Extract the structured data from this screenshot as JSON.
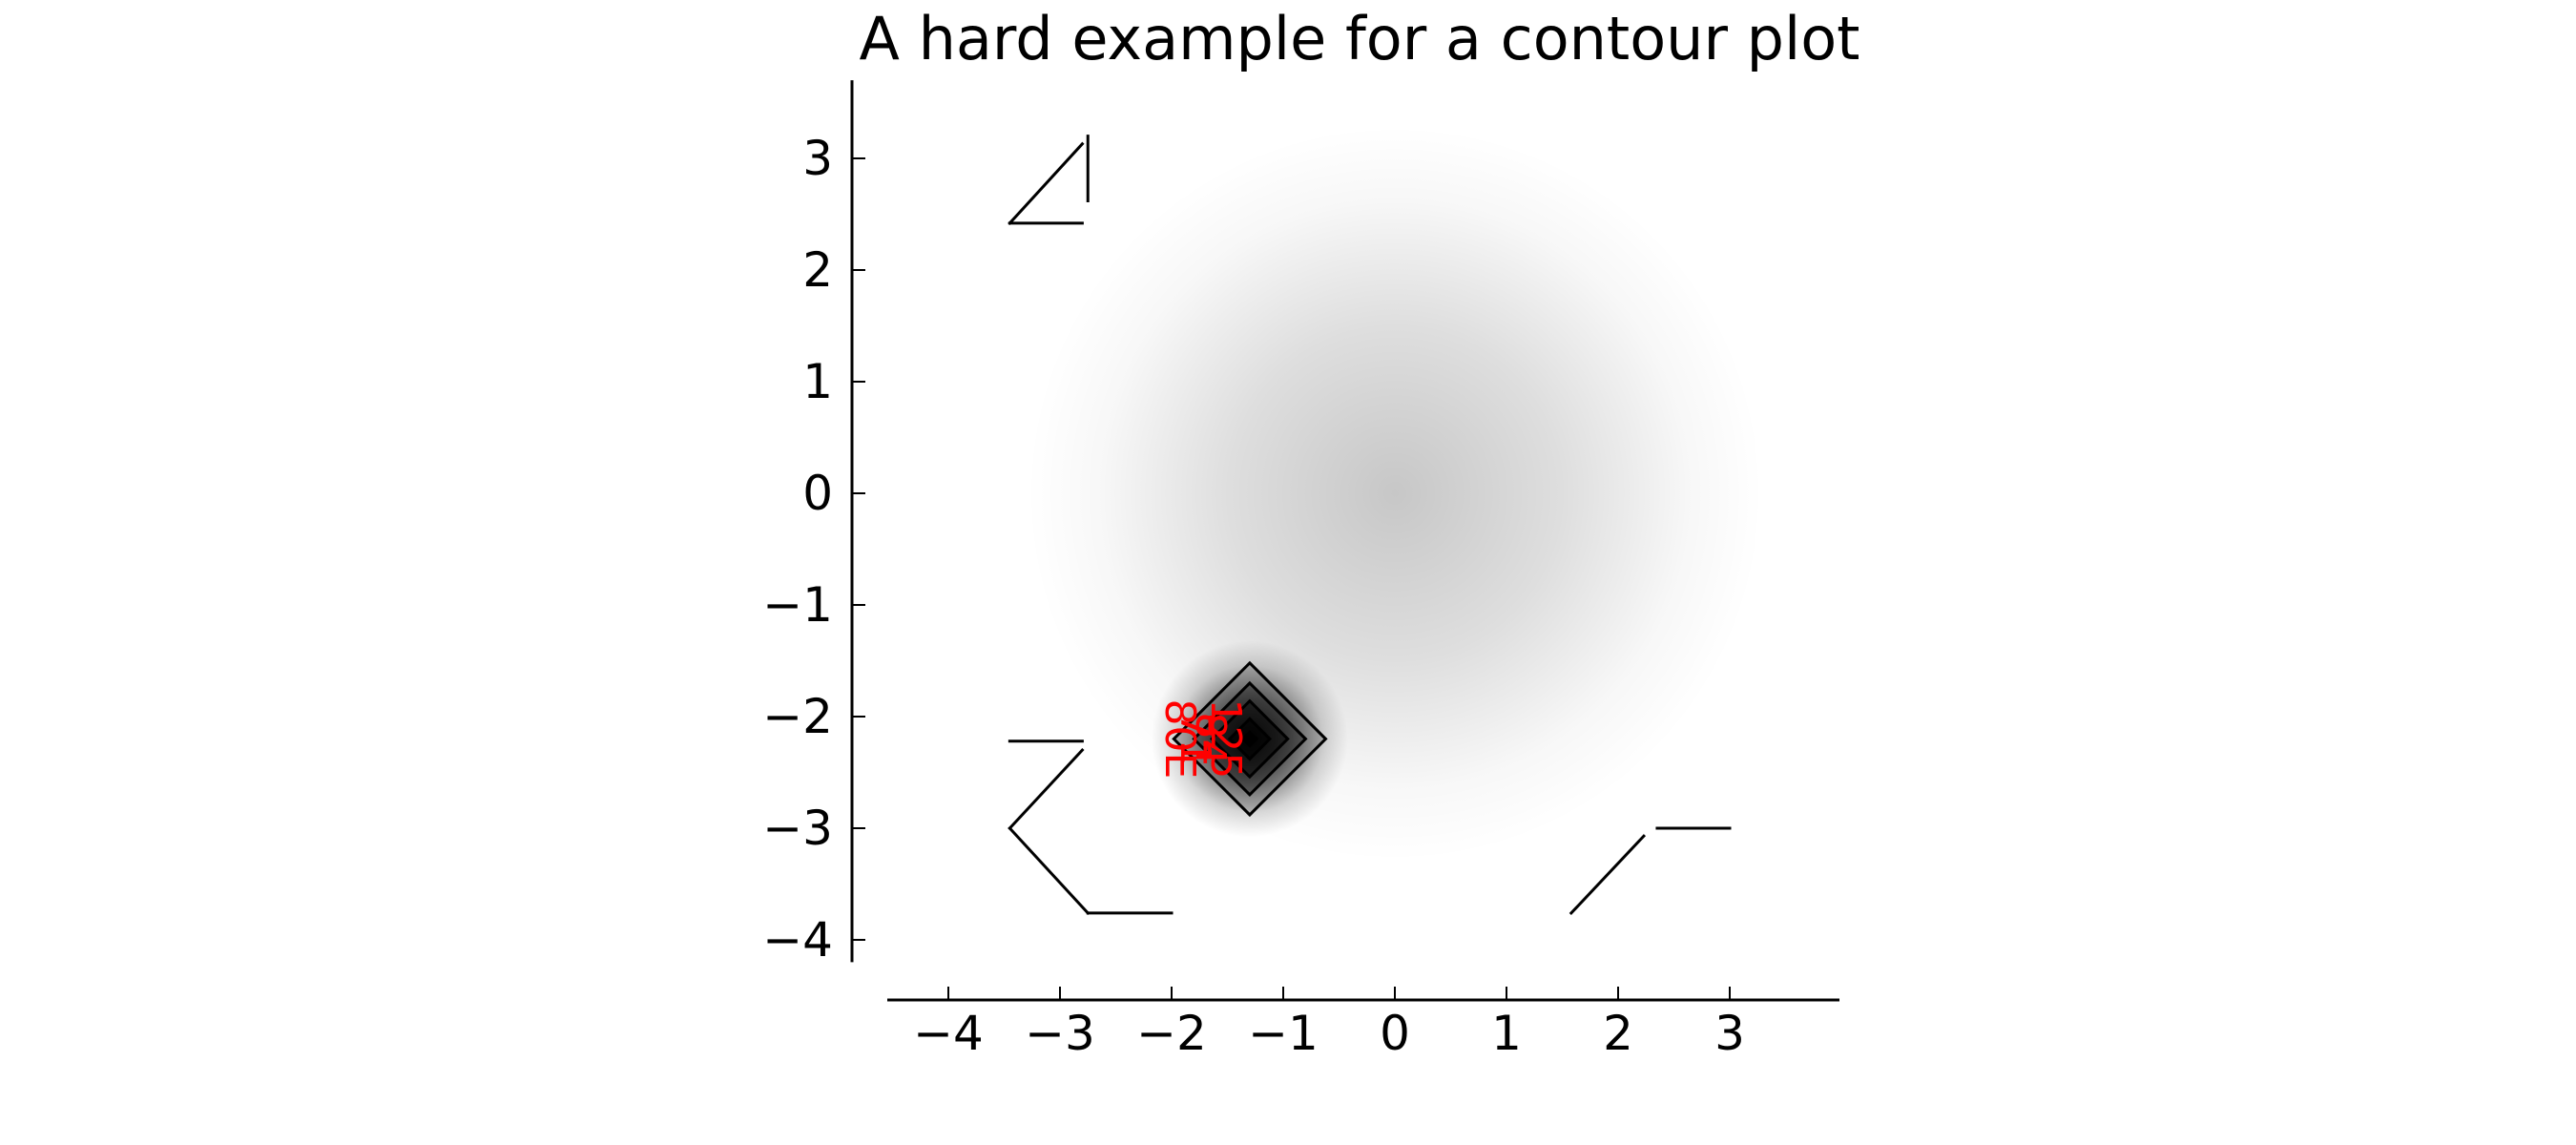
{
  "chart_data": {
    "type": "contour",
    "title": "A hard example for a contour plot",
    "xlabel": "",
    "ylabel": "",
    "xlim": [
      -4.5,
      4
    ],
    "ylim": [
      -4.2,
      3.7
    ],
    "x_ticks": [
      -4,
      -3,
      -2,
      -1,
      0,
      1,
      2,
      3
    ],
    "y_ticks": [
      -4,
      -3,
      -2,
      -1,
      0,
      1,
      2,
      3
    ],
    "x_tick_labels": [
      "−4",
      "−3",
      "−2",
      "−1",
      "0",
      "1",
      "2",
      "3"
    ],
    "y_tick_labels": [
      "−4",
      "−3",
      "−2",
      "−1",
      "0",
      "1",
      "2",
      "3"
    ],
    "grid": false,
    "colormap": "gray_r",
    "background_blobs": [
      {
        "center": [
          0,
          0
        ],
        "sigma": 1.5,
        "intensity": 0.22
      },
      {
        "center": [
          -1.3,
          -2.2
        ],
        "sigma": 0.4,
        "intensity": 0.9
      }
    ],
    "contour_sets": [
      {
        "name": "peak",
        "center": [
          -1.3,
          -2.2
        ],
        "half_widths": [
          0.68,
          0.5,
          0.34,
          0.18,
          0.06
        ],
        "color": "#000000"
      }
    ],
    "stray_segments": [
      [
        [
          -3.45,
          2.42
        ],
        [
          -2.8,
          3.13
        ]
      ],
      [
        [
          -3.45,
          2.42
        ],
        [
          -2.8,
          2.42
        ]
      ],
      [
        [
          -2.75,
          3.2
        ],
        [
          -2.75,
          2.62
        ]
      ],
      [
        [
          -3.45,
          -2.22
        ],
        [
          -2.8,
          -2.22
        ]
      ],
      [
        [
          -2.8,
          -2.3
        ],
        [
          -3.45,
          -3.0
        ]
      ],
      [
        [
          -3.45,
          -3.0
        ],
        [
          -2.75,
          -3.76
        ]
      ],
      [
        [
          -2.75,
          -3.76
        ],
        [
          -2.0,
          -3.76
        ]
      ],
      [
        [
          1.58,
          -3.76
        ],
        [
          2.23,
          -3.07
        ]
      ],
      [
        [
          2.35,
          -3.0
        ],
        [
          3.0,
          -3.0
        ]
      ]
    ],
    "contour_labels": {
      "texts": [
        "125",
        "84",
        "71",
        "80E"
      ],
      "color": "#ff0000",
      "rotation": 90
    }
  }
}
